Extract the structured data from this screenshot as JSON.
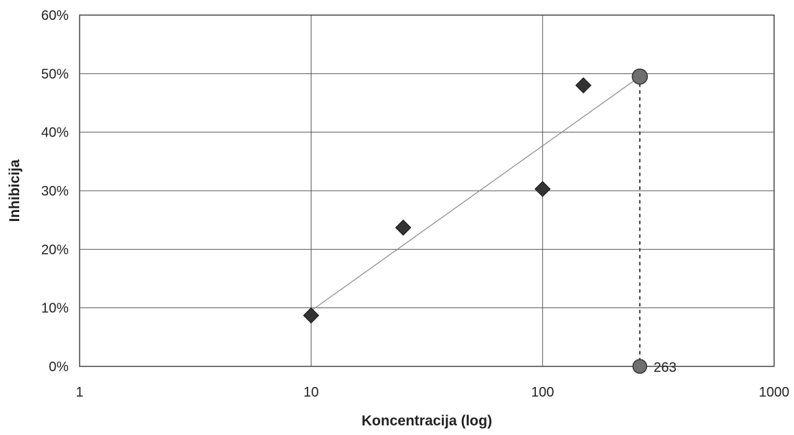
{
  "chart_data": {
    "type": "scatter",
    "title": "",
    "xlabel": "Koncentracija (log)",
    "ylabel": "Inhibicija",
    "x_scale": "log",
    "xlim": [
      1,
      1000
    ],
    "ylim": [
      0,
      60
    ],
    "x_ticks": [
      1,
      10,
      100,
      1000
    ],
    "x_tick_labels": [
      "1",
      "10",
      "100",
      "1000"
    ],
    "y_ticks": [
      0,
      10,
      20,
      30,
      40,
      50,
      60
    ],
    "y_tick_labels": [
      "0%",
      "10%",
      "20%",
      "30%",
      "40%",
      "50%",
      "60%"
    ],
    "grid": true,
    "legend": "none",
    "series": [
      {
        "marker": "diamond",
        "color": "#333333",
        "points": [
          {
            "x": 10,
            "y": 8.7
          },
          {
            "x": 25,
            "y": 23.7
          },
          {
            "x": 100,
            "y": 30.3
          },
          {
            "x": 150,
            "y": 48.0
          }
        ]
      }
    ],
    "fit_line": {
      "x": [
        10,
        263
      ],
      "y": [
        9.5,
        49.5
      ],
      "color": "#888888"
    },
    "ic50_marker": {
      "x": 263,
      "y": 49.5,
      "label": "263",
      "color": "#6f6f6f"
    }
  }
}
